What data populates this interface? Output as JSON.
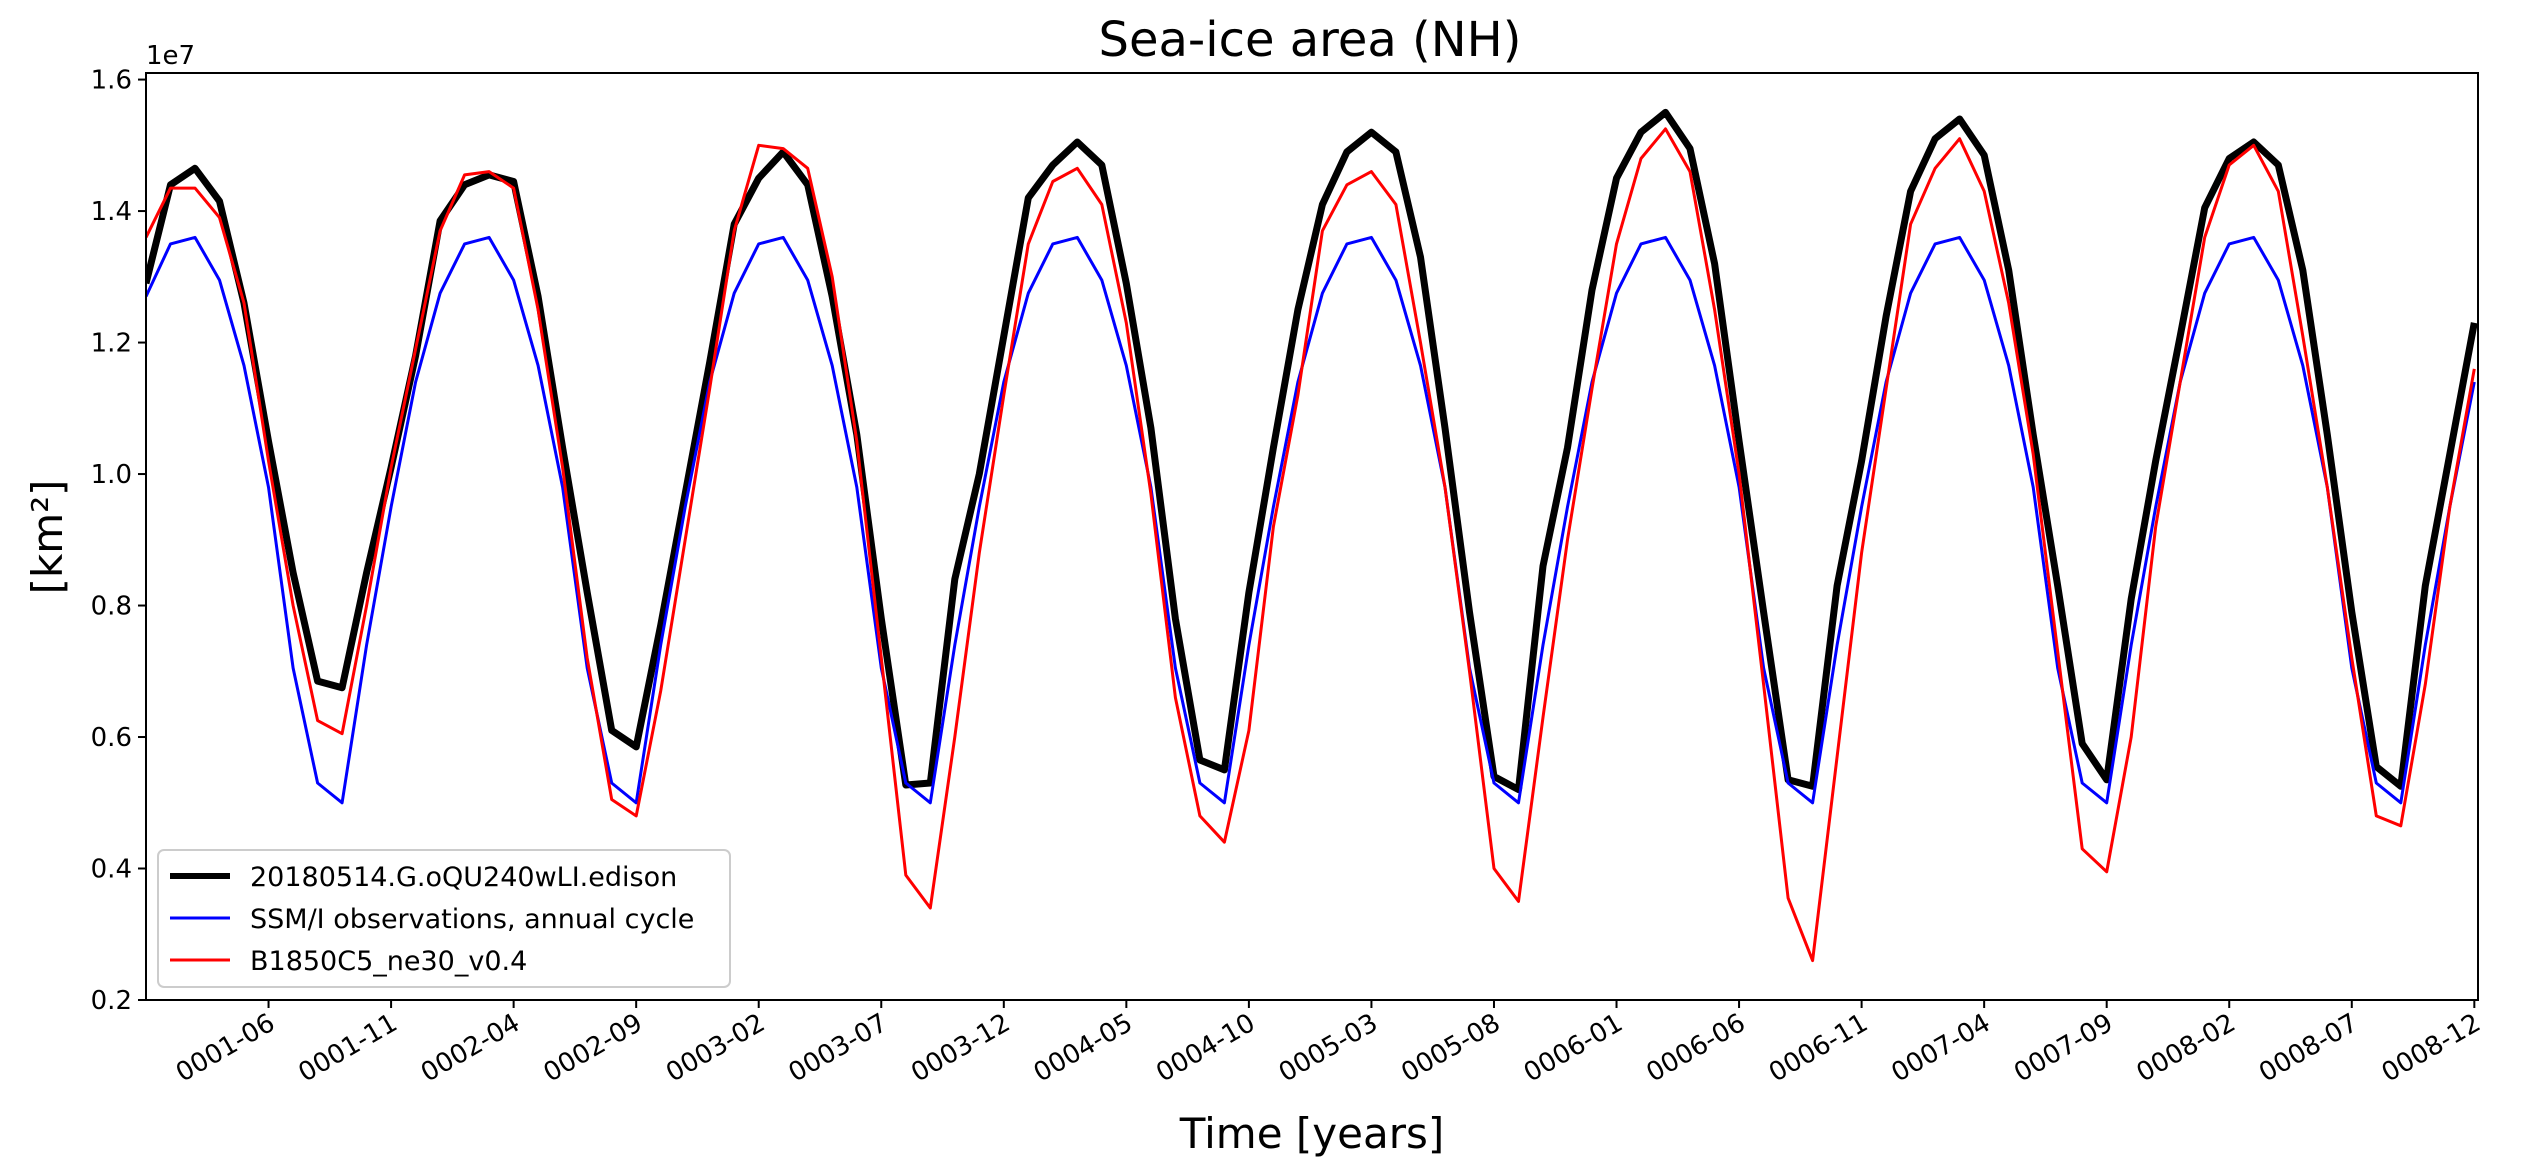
{
  "chart_data": {
    "type": "line",
    "title": "Sea-ice area (NH)",
    "xlabel": "Time [years]",
    "ylabel": "[km²]",
    "y_offset_label": "1e7",
    "ylim": [
      0.2,
      1.61
    ],
    "yticks": [
      0.2,
      0.4,
      0.6,
      0.8,
      1.0,
      1.2,
      1.4,
      1.6
    ],
    "ytick_labels": [
      "0.2",
      "0.4",
      "0.6",
      "0.8",
      "1.0",
      "1.2",
      "1.4",
      "1.6"
    ],
    "xlim_months": [
      0,
      95.15
    ],
    "xticks": [
      {
        "label": "0001-06",
        "month": 5
      },
      {
        "label": "0001-11",
        "month": 10
      },
      {
        "label": "0002-04",
        "month": 15
      },
      {
        "label": "0002-09",
        "month": 20
      },
      {
        "label": "0003-02",
        "month": 25
      },
      {
        "label": "0003-07",
        "month": 30
      },
      {
        "label": "0003-12",
        "month": 35
      },
      {
        "label": "0004-05",
        "month": 40
      },
      {
        "label": "0004-10",
        "month": 45
      },
      {
        "label": "0005-03",
        "month": 50
      },
      {
        "label": "0005-08",
        "month": 55
      },
      {
        "label": "0006-01",
        "month": 60
      },
      {
        "label": "0006-06",
        "month": 65
      },
      {
        "label": "0006-11",
        "month": 70
      },
      {
        "label": "0007-04",
        "month": 75
      },
      {
        "label": "0007-09",
        "month": 80
      },
      {
        "label": "0008-02",
        "month": 85
      },
      {
        "label": "0008-07",
        "month": 90
      },
      {
        "label": "0008-12",
        "month": 95
      }
    ],
    "legend_position": "lower-left",
    "grid": false,
    "series": [
      {
        "name": "20180514.G.oQU240wLI.edison",
        "color": "#000000",
        "style": "thick",
        "values": [
          1.29,
          1.44,
          1.465,
          1.415,
          1.26,
          1.05,
          0.85,
          0.685,
          0.675,
          0.85,
          1.01,
          1.18,
          1.385,
          1.44,
          1.455,
          1.445,
          1.27,
          1.04,
          0.82,
          0.61,
          0.585,
          0.77,
          0.97,
          1.17,
          1.38,
          1.45,
          1.49,
          1.44,
          1.27,
          1.06,
          0.78,
          0.527,
          0.53,
          0.84,
          1.0,
          1.21,
          1.42,
          1.47,
          1.505,
          1.47,
          1.29,
          1.07,
          0.78,
          0.565,
          0.55,
          0.82,
          1.04,
          1.25,
          1.41,
          1.49,
          1.52,
          1.49,
          1.33,
          1.07,
          0.79,
          0.54,
          0.52,
          0.86,
          1.04,
          1.28,
          1.45,
          1.52,
          1.55,
          1.495,
          1.32,
          1.05,
          0.79,
          0.535,
          0.525,
          0.83,
          1.02,
          1.24,
          1.43,
          1.51,
          1.54,
          1.485,
          1.31,
          1.06,
          0.83,
          0.59,
          0.535,
          0.81,
          1.02,
          1.21,
          1.405,
          1.48,
          1.505,
          1.47,
          1.31,
          1.06,
          0.79,
          0.555,
          0.525,
          0.83,
          1.03,
          1.23
        ]
      },
      {
        "name": "SSM/I observations, annual cycle",
        "color": "#0000ff",
        "style": "thin",
        "values": [
          1.27,
          1.35,
          1.36,
          1.295,
          1.165,
          0.98,
          0.705,
          0.53,
          0.5,
          0.74,
          0.95,
          1.14,
          1.275,
          1.35,
          1.36,
          1.295,
          1.165,
          0.98,
          0.705,
          0.53,
          0.5,
          0.74,
          0.95,
          1.14,
          1.275,
          1.35,
          1.36,
          1.295,
          1.165,
          0.98,
          0.705,
          0.53,
          0.5,
          0.74,
          0.95,
          1.14,
          1.275,
          1.35,
          1.36,
          1.295,
          1.165,
          0.98,
          0.705,
          0.53,
          0.5,
          0.74,
          0.95,
          1.14,
          1.275,
          1.35,
          1.36,
          1.295,
          1.165,
          0.98,
          0.705,
          0.53,
          0.5,
          0.74,
          0.95,
          1.14,
          1.275,
          1.35,
          1.36,
          1.295,
          1.165,
          0.98,
          0.705,
          0.53,
          0.5,
          0.74,
          0.95,
          1.14,
          1.275,
          1.35,
          1.36,
          1.295,
          1.165,
          0.98,
          0.705,
          0.53,
          0.5,
          0.74,
          0.95,
          1.14,
          1.275,
          1.35,
          1.36,
          1.295,
          1.165,
          0.98,
          0.705,
          0.53,
          0.5,
          0.74,
          0.95,
          1.14
        ]
      },
      {
        "name": "B1850C5_ne30_v0.4",
        "color": "#ff0000",
        "style": "thin",
        "values": [
          1.36,
          1.435,
          1.435,
          1.39,
          1.26,
          1.02,
          0.8,
          0.625,
          0.605,
          0.8,
          1.01,
          1.19,
          1.37,
          1.455,
          1.46,
          1.435,
          1.25,
          1.01,
          0.72,
          0.505,
          0.48,
          0.67,
          0.9,
          1.13,
          1.37,
          1.5,
          1.495,
          1.465,
          1.3,
          1.05,
          0.72,
          0.39,
          0.34,
          0.6,
          0.88,
          1.12,
          1.35,
          1.445,
          1.465,
          1.41,
          1.23,
          0.97,
          0.66,
          0.48,
          0.44,
          0.61,
          0.92,
          1.12,
          1.37,
          1.44,
          1.46,
          1.41,
          1.2,
          0.98,
          0.7,
          0.4,
          0.35,
          0.63,
          0.9,
          1.13,
          1.35,
          1.48,
          1.525,
          1.46,
          1.25,
          1.0,
          0.68,
          0.355,
          0.26,
          0.57,
          0.88,
          1.13,
          1.38,
          1.465,
          1.51,
          1.43,
          1.26,
          1.03,
          0.73,
          0.43,
          0.395,
          0.6,
          0.92,
          1.14,
          1.36,
          1.47,
          1.5,
          1.43,
          1.21,
          0.98,
          0.72,
          0.48,
          0.465,
          0.68,
          0.95,
          1.16
        ]
      }
    ]
  }
}
